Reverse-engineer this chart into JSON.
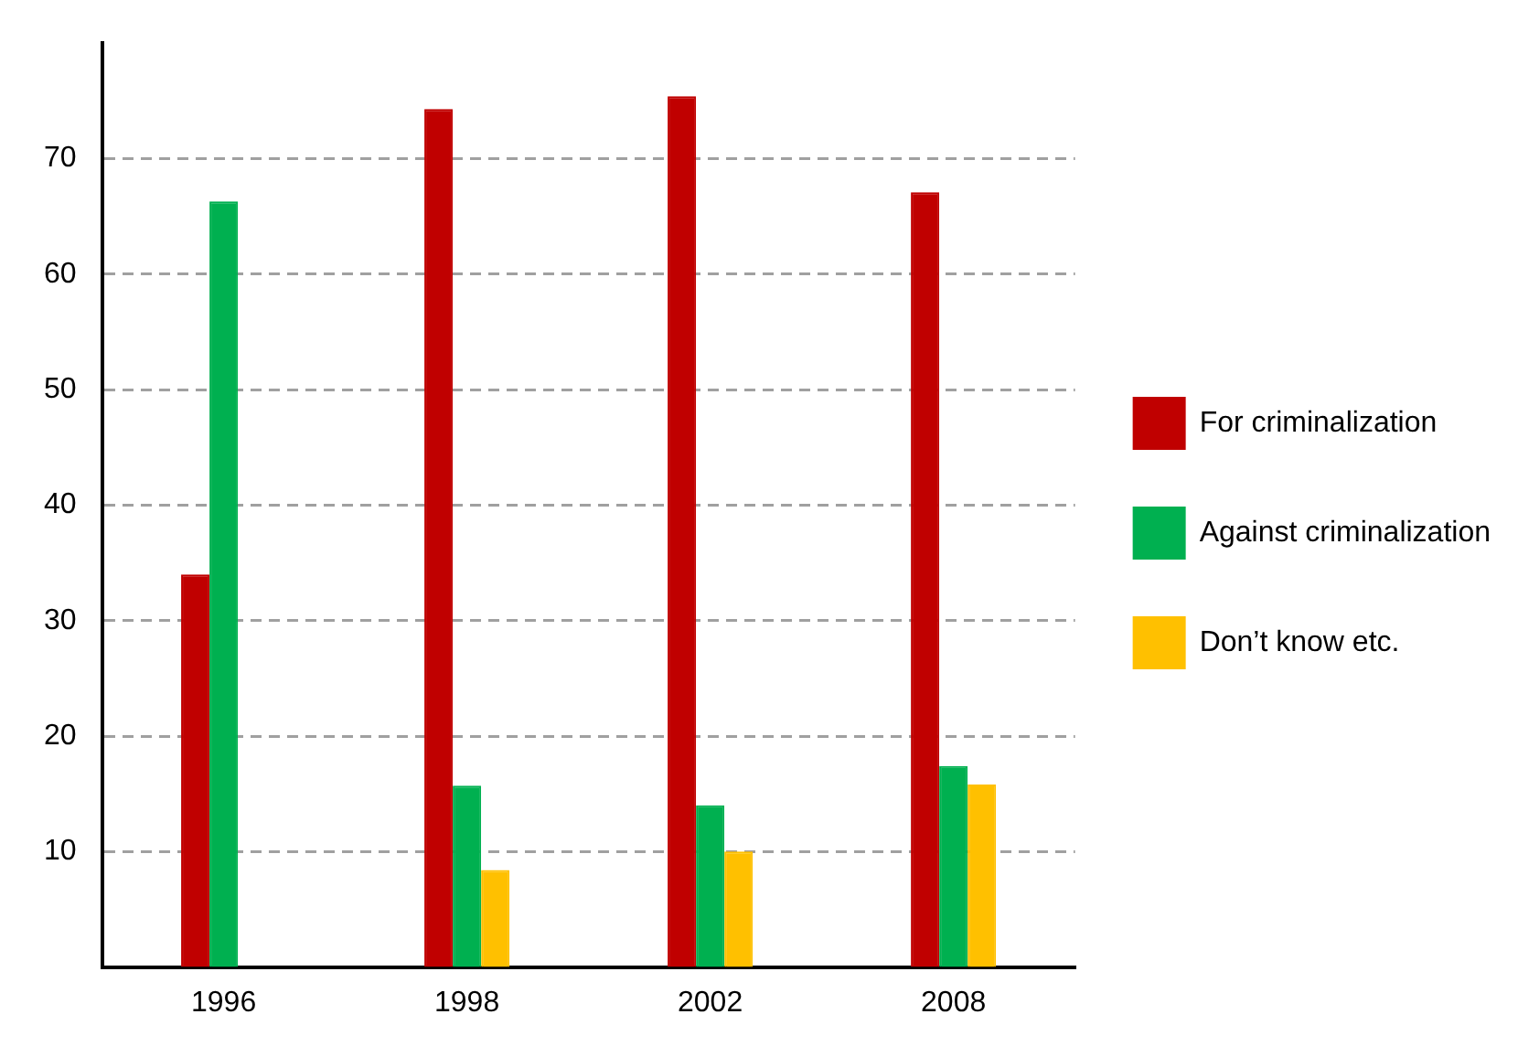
{
  "chart_data": {
    "type": "bar",
    "categories": [
      "1996",
      "1998",
      "2002",
      "2008"
    ],
    "series": [
      {
        "name": "For criminalization",
        "color": "#c00000",
        "values": [
          34,
          74.3,
          75.4,
          67.1
        ]
      },
      {
        "name": "Against criminalization",
        "color": "#00b050",
        "values": [
          66.3,
          15.7,
          14.0,
          17.4
        ]
      },
      {
        "name": "Don’t know etc.",
        "color": "#ffc000",
        "values": [
          null,
          8.4,
          10.0,
          15.8
        ]
      }
    ],
    "ylim": [
      0,
      80
    ],
    "yticks": [
      10,
      20,
      30,
      40,
      50,
      60,
      70
    ],
    "grid": "y",
    "legend": "right"
  }
}
